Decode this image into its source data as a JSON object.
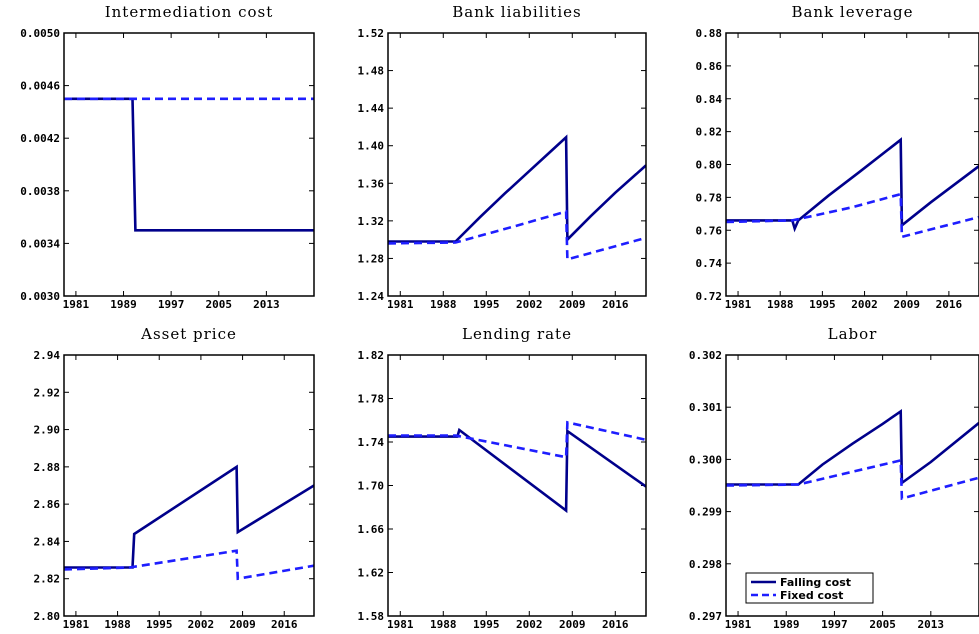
{
  "legend": {
    "entries": [
      {
        "label": "Falling cost",
        "style": "solid",
        "color": "#00008b"
      },
      {
        "label": "Fixed cost",
        "style": "dashed",
        "color": "#1e1eff"
      }
    ],
    "placement": "lower-left of Labor panel"
  },
  "chart_data": [
    {
      "type": "line",
      "title": "Intermediation cost",
      "xticks": [
        "1981",
        "1989",
        "1997",
        "2005",
        "2013"
      ],
      "xlim": [
        1979,
        2021
      ],
      "yticks": [
        "0.0030",
        "0.0034",
        "0.0038",
        "0.0042",
        "0.0046",
        "0.0050"
      ],
      "ylim": [
        0.003,
        0.005
      ],
      "series": [
        {
          "name": "Falling cost",
          "color": "#00008b",
          "dash": false,
          "x": [
            1979,
            1990.5,
            1991,
            2021
          ],
          "y": [
            0.0045,
            0.0045,
            0.0035,
            0.0035
          ]
        },
        {
          "name": "Fixed cost",
          "color": "#1e1eff",
          "dash": true,
          "x": [
            1979,
            2021
          ],
          "y": [
            0.0045,
            0.0045
          ]
        }
      ]
    },
    {
      "type": "line",
      "title": "Bank liabilities",
      "xticks": [
        "1981",
        "1988",
        "1995",
        "2002",
        "2009",
        "2016"
      ],
      "xlim": [
        1979,
        2021
      ],
      "yticks": [
        "1.24",
        "1.28",
        "1.32",
        "1.36",
        "1.40",
        "1.44",
        "1.48",
        "1.52"
      ],
      "ylim": [
        1.24,
        1.52
      ],
      "series": [
        {
          "name": "Falling cost",
          "color": "#00008b",
          "dash": false,
          "x": [
            1979,
            1990,
            1994,
            1998,
            2002,
            2006,
            2008,
            2008.2,
            2012,
            2016,
            2021
          ],
          "y": [
            1.298,
            1.298,
            1.324,
            1.349,
            1.373,
            1.397,
            1.409,
            1.3,
            1.325,
            1.35,
            1.379
          ]
        },
        {
          "name": "Fixed cost",
          "color": "#1e1eff",
          "dash": true,
          "x": [
            1979,
            1990,
            2000,
            2008,
            2008.2,
            2021
          ],
          "y": [
            1.296,
            1.297,
            1.315,
            1.33,
            1.279,
            1.302
          ]
        }
      ]
    },
    {
      "type": "line",
      "title": "Bank leverage",
      "xticks": [
        "1981",
        "1988",
        "1995",
        "2002",
        "2009",
        "2016"
      ],
      "xlim": [
        1979,
        2021
      ],
      "yticks": [
        "0.72",
        "0.74",
        "0.76",
        "0.78",
        "0.80",
        "0.82",
        "0.84",
        "0.86",
        "0.88"
      ],
      "ylim": [
        0.72,
        0.88
      ],
      "series": [
        {
          "name": "Falling cost",
          "color": "#00008b",
          "dash": false,
          "x": [
            1979,
            1990,
            1990.4,
            1991,
            1996,
            2001,
            2008,
            2008.2,
            2013,
            2021
          ],
          "y": [
            0.766,
            0.766,
            0.761,
            0.766,
            0.781,
            0.795,
            0.815,
            0.763,
            0.777,
            0.799
          ]
        },
        {
          "name": "Fixed cost",
          "color": "#1e1eff",
          "dash": true,
          "x": [
            1979,
            1990,
            2000,
            2008,
            2008.2,
            2021
          ],
          "y": [
            0.765,
            0.766,
            0.774,
            0.782,
            0.756,
            0.768
          ]
        }
      ]
    },
    {
      "type": "line",
      "title": "Asset price",
      "xticks": [
        "1981",
        "1988",
        "1995",
        "2002",
        "2009",
        "2016"
      ],
      "xlim": [
        1979,
        2021
      ],
      "yticks": [
        "2.80",
        "2.82",
        "2.84",
        "2.86",
        "2.88",
        "2.90",
        "2.92",
        "2.94"
      ],
      "ylim": [
        2.8,
        2.94
      ],
      "series": [
        {
          "name": "Falling cost",
          "color": "#00008b",
          "dash": false,
          "x": [
            1979,
            1990.5,
            1990.8,
            2008,
            2008.2,
            2021
          ],
          "y": [
            2.826,
            2.826,
            2.844,
            2.88,
            2.845,
            2.87
          ]
        },
        {
          "name": "Fixed cost",
          "color": "#1e1eff",
          "dash": true,
          "x": [
            1979,
            1990,
            2008,
            2008.2,
            2021
          ],
          "y": [
            2.825,
            2.826,
            2.835,
            2.82,
            2.827
          ]
        }
      ]
    },
    {
      "type": "line",
      "title": "Lending rate",
      "xticks": [
        "1981",
        "1988",
        "1995",
        "2002",
        "2009",
        "2016"
      ],
      "xlim": [
        1979,
        2021
      ],
      "yticks": [
        "1.58",
        "1.62",
        "1.66",
        "1.70",
        "1.74",
        "1.78",
        "1.82"
      ],
      "ylim": [
        1.58,
        1.82
      ],
      "series": [
        {
          "name": "Falling cost",
          "color": "#00008b",
          "dash": false,
          "x": [
            1979,
            1990.3,
            1990.6,
            2008,
            2008.2,
            2021
          ],
          "y": [
            1.745,
            1.745,
            1.751,
            1.677,
            1.75,
            1.699
          ]
        },
        {
          "name": "Fixed cost",
          "color": "#1e1eff",
          "dash": true,
          "x": [
            1979,
            1990,
            2008,
            2008.2,
            2021
          ],
          "y": [
            1.746,
            1.746,
            1.726,
            1.758,
            1.742
          ]
        }
      ]
    },
    {
      "type": "line",
      "title": "Labor",
      "xticks": [
        "1981",
        "1989",
        "1997",
        "2005",
        "2013"
      ],
      "xlim": [
        1979,
        2021
      ],
      "yticks": [
        "0.297",
        "0.298",
        "0.299",
        "0.300",
        "0.301",
        "0.302"
      ],
      "ylim": [
        0.297,
        0.302
      ],
      "series": [
        {
          "name": "Falling cost",
          "color": "#00008b",
          "dash": false,
          "x": [
            1979,
            1991,
            1995,
            2000,
            2005,
            2008,
            2008.2,
            2013,
            2021
          ],
          "y": [
            0.29952,
            0.29952,
            0.2999,
            0.3003,
            0.30068,
            0.30092,
            0.29955,
            0.29995,
            0.3007
          ]
        },
        {
          "name": "Fixed cost",
          "color": "#1e1eff",
          "dash": true,
          "x": [
            1979,
            1991,
            2008,
            2008.2,
            2021
          ],
          "y": [
            0.2995,
            0.29952,
            0.29998,
            0.29925,
            0.29965
          ]
        }
      ]
    }
  ]
}
